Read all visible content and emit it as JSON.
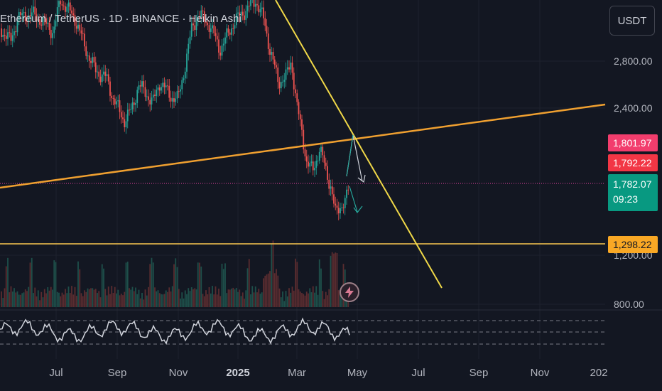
{
  "header": {
    "title": "Ethereum / TetherUS · 1D · BINANCE · Heikin Ashi"
  },
  "currency_button": {
    "label": "USDT"
  },
  "price_axis": {
    "ticks": [
      {
        "label": "2,800.00",
        "value": 2800
      },
      {
        "label": "2,400.00",
        "value": 2400
      },
      {
        "label": "1,200.00",
        "value": 1200
      },
      {
        "label": "800.00",
        "value": 800
      }
    ]
  },
  "price_badges": {
    "upper": {
      "label": "1,801.97",
      "value": 1801.97,
      "color": "#f23d6d"
    },
    "middle": {
      "label": "1,792.22",
      "value": 1792.22,
      "color": "#f23645"
    },
    "last": {
      "label": "1,782.07",
      "value": 1782.07,
      "countdown": "09:23",
      "color": "#089981"
    },
    "level": {
      "label": "1,298.22",
      "value": 1298.22,
      "color": "#f9a825"
    }
  },
  "time_axis": {
    "labels": [
      {
        "label": "Jul",
        "bold": false
      },
      {
        "label": "Sep",
        "bold": false
      },
      {
        "label": "Nov",
        "bold": false
      },
      {
        "label": "2025",
        "bold": true
      },
      {
        "label": "Mar",
        "bold": false
      },
      {
        "label": "May",
        "bold": false
      },
      {
        "label": "Jul",
        "bold": false
      },
      {
        "label": "Sep",
        "bold": false
      },
      {
        "label": "Nov",
        "bold": false
      },
      {
        "label": "202",
        "bold": false
      }
    ]
  },
  "colors": {
    "background": "#131722",
    "up": "#26a69a",
    "down": "#ef5350",
    "trendline_yellow": "#f0d848",
    "trendline_orange": "#f0a030",
    "horizontal_level": "#f9c74f",
    "pink_dotted": "#e040a0",
    "rsi": "#d1d4dc",
    "arrow_white": "#d1d4dc",
    "arrow_teal": "#26a69a"
  },
  "icons": {
    "alert": "lightning-alert-icon"
  }
}
